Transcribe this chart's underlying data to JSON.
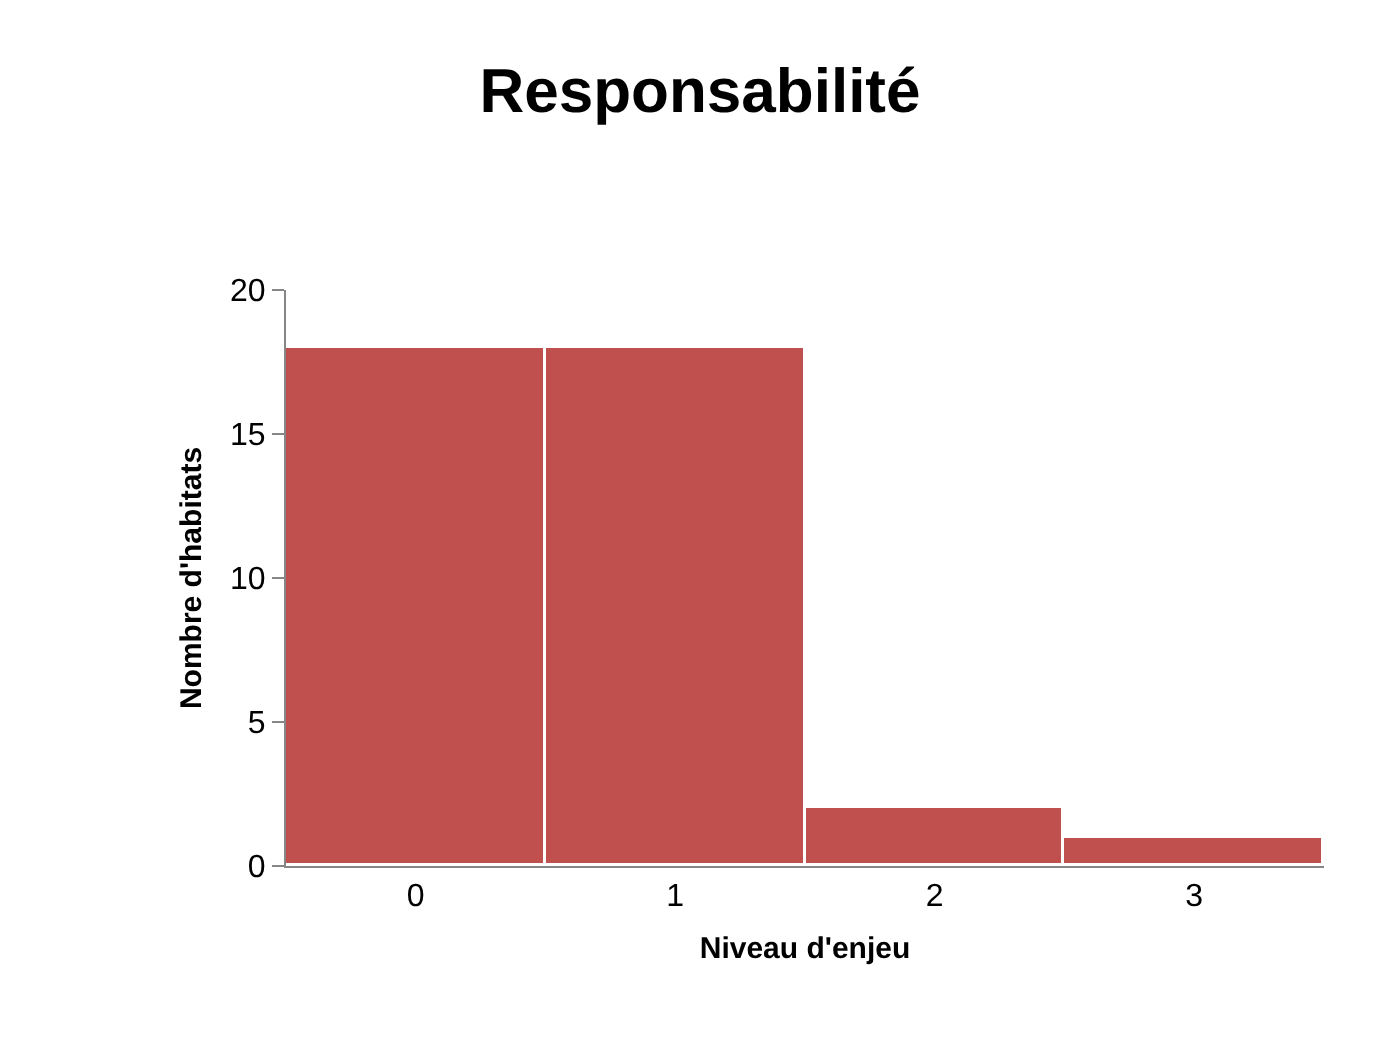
{
  "chart_data": {
    "type": "bar",
    "title": "Responsabilité",
    "xlabel": "Niveau d'enjeu",
    "ylabel": "Nombre d'habitats",
    "categories": [
      "0",
      "1",
      "2",
      "3"
    ],
    "values": [
      18,
      18,
      2,
      1
    ],
    "color": "#c0504d",
    "ylim": [
      0,
      20
    ],
    "yticks": [
      0,
      5,
      10,
      15,
      20
    ],
    "legend": false
  }
}
